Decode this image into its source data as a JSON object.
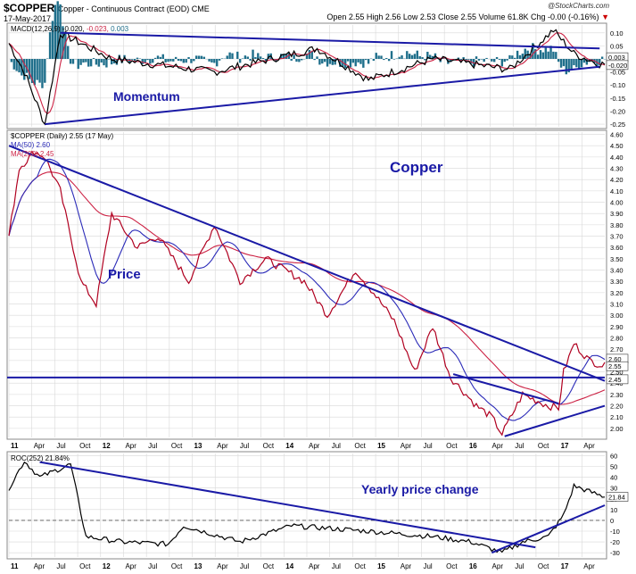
{
  "header": {
    "symbol": "$COPPER",
    "description": "Copper - Continuous Contract (EOD) CME",
    "date": "17-May-2017",
    "credit": "@StockCharts.com",
    "quote": "Open 2.55  High 2.56  Low 2.53  Close 2.55  Volume 61.8K  Chg -0.00 (-0.16%)",
    "down_arrow": "▼"
  },
  "colors": {
    "price": "#000000",
    "price_bar": "#b00020",
    "ma50": "#2b2bb8",
    "ma200": "#cc2244",
    "macd_line": "#000000",
    "signal_line": "#cc2244",
    "histogram": "#1f6f8b",
    "trendline": "#1a1aa6",
    "grid": "#d8d8d8"
  },
  "chart_data": [
    {
      "panel": "macd",
      "type": "line",
      "legend": {
        "macd": "MACD(12,26,9) -0.020,",
        "signal": "-0.023,",
        "hist": "0.003"
      },
      "y_ticks": [
        "0.10",
        "0.05",
        "0.00",
        "-0.05",
        "-0.10",
        "-0.15",
        "-0.20",
        "-0.25"
      ],
      "ylim": [
        -0.26,
        0.13
      ],
      "last_labels": [
        "0.003",
        "-0.020"
      ],
      "annotation": "Momentum",
      "key_points": [
        [
          0,
          0.06
        ],
        [
          6,
          -0.05
        ],
        [
          14,
          -0.25
        ],
        [
          20,
          0.1
        ],
        [
          40,
          0.0
        ],
        [
          80,
          -0.05
        ],
        [
          120,
          0.04
        ],
        [
          140,
          -0.08
        ],
        [
          165,
          0.0
        ],
        [
          195,
          -0.04
        ],
        [
          212,
          0.11
        ],
        [
          220,
          0.02
        ],
        [
          230,
          -0.02
        ]
      ],
      "trendlines": [
        {
          "from": [
            14,
            -0.25
          ],
          "to": [
            230,
            -0.03
          ]
        },
        {
          "from": [
            20,
            0.1
          ],
          "to": [
            230,
            0.04
          ]
        }
      ]
    },
    {
      "panel": "price",
      "type": "line",
      "legend": {
        "price": "$COPPER (Daily) 2.55 (17 May)",
        "ma50": "MA(50) 2.60",
        "ma200": "MA(200) 2.45"
      },
      "y_ticks": [
        "4.60",
        "4.50",
        "4.40",
        "4.30",
        "4.20",
        "4.10",
        "4.00",
        "3.90",
        "3.80",
        "3.70",
        "3.60",
        "3.50",
        "3.40",
        "3.30",
        "3.20",
        "3.10",
        "3.00",
        "2.90",
        "2.80",
        "2.70",
        "2.60",
        "2.50",
        "2.40",
        "2.30",
        "2.20",
        "2.10",
        "2.00"
      ],
      "ylim": [
        1.92,
        4.62
      ],
      "last_labels": [
        "2.60",
        "2.55",
        "2.45"
      ],
      "annotation_title": "Copper",
      "annotation": "Price",
      "horizontal_line": 2.45,
      "key_points": [
        [
          0,
          3.7
        ],
        [
          4,
          4.3
        ],
        [
          10,
          4.45
        ],
        [
          14,
          4.4
        ],
        [
          20,
          4.1
        ],
        [
          28,
          3.3
        ],
        [
          34,
          3.1
        ],
        [
          40,
          3.9
        ],
        [
          50,
          3.6
        ],
        [
          58,
          3.7
        ],
        [
          70,
          3.3
        ],
        [
          80,
          3.8
        ],
        [
          90,
          3.3
        ],
        [
          100,
          3.5
        ],
        [
          115,
          3.3
        ],
        [
          124,
          3.0
        ],
        [
          135,
          3.4
        ],
        [
          142,
          3.2
        ],
        [
          150,
          2.95
        ],
        [
          158,
          2.5
        ],
        [
          165,
          2.9
        ],
        [
          172,
          2.45
        ],
        [
          182,
          2.2
        ],
        [
          188,
          2.1
        ],
        [
          192,
          1.95
        ],
        [
          200,
          2.3
        ],
        [
          210,
          2.2
        ],
        [
          214,
          2.18
        ],
        [
          216,
          2.5
        ],
        [
          220,
          2.75
        ],
        [
          226,
          2.6
        ],
        [
          232,
          2.55
        ]
      ],
      "trendlines": [
        {
          "from": [
            0,
            4.5
          ],
          "to": [
            232,
            2.42
          ]
        },
        {
          "from": [
            173,
            2.48
          ],
          "to": [
            214,
            2.22
          ]
        },
        {
          "from": [
            193,
            1.93
          ],
          "to": [
            232,
            2.2
          ]
        }
      ]
    },
    {
      "panel": "roc",
      "type": "line",
      "legend": {
        "roc": "ROC(252) 21.84%"
      },
      "y_ticks": [
        "60",
        "50",
        "40",
        "30",
        "20",
        "10",
        "0",
        "-10",
        "-20",
        "-30"
      ],
      "ylim": [
        -34,
        62
      ],
      "last_labels": [
        "21.84"
      ],
      "annotation": "Yearly price change",
      "zero_line": 0,
      "key_points": [
        [
          0,
          30
        ],
        [
          6,
          55
        ],
        [
          12,
          40
        ],
        [
          24,
          52
        ],
        [
          30,
          -15
        ],
        [
          44,
          -20
        ],
        [
          62,
          -22
        ],
        [
          68,
          -5
        ],
        [
          90,
          -20
        ],
        [
          110,
          -5
        ],
        [
          140,
          -10
        ],
        [
          165,
          -15
        ],
        [
          180,
          -20
        ],
        [
          192,
          -30
        ],
        [
          200,
          -20
        ],
        [
          210,
          -15
        ],
        [
          216,
          5
        ],
        [
          220,
          32
        ],
        [
          228,
          25
        ],
        [
          232,
          21.84
        ]
      ],
      "trendlines": [
        {
          "from": [
            12,
            54
          ],
          "to": [
            205,
            -25
          ]
        },
        {
          "from": [
            188,
            -30
          ],
          "to": [
            232,
            14
          ]
        }
      ]
    }
  ],
  "x_axis": {
    "labels": [
      "11",
      "Apr",
      "Jul",
      "Oct",
      "12",
      "Apr",
      "Jul",
      "Oct",
      "13",
      "Apr",
      "Jul",
      "Oct",
      "14",
      "Apr",
      "Jul",
      "Oct",
      "15",
      "Apr",
      "Jul",
      "Oct",
      "16",
      "Apr",
      "Jul",
      "Oct",
      "17",
      "Apr"
    ],
    "bold": [
      true,
      false,
      false,
      false,
      true,
      false,
      false,
      false,
      true,
      false,
      false,
      false,
      true,
      false,
      false,
      false,
      true,
      false,
      false,
      false,
      true,
      false,
      false,
      false,
      true,
      false
    ],
    "month_index": [
      0,
      13,
      26,
      39,
      52,
      65,
      78,
      91,
      104,
      117,
      130,
      143,
      156,
      169,
      182,
      195,
      208,
      221,
      234,
      247,
      260,
      273,
      286,
      299,
      312,
      325
    ],
    "total_months": 338
  }
}
